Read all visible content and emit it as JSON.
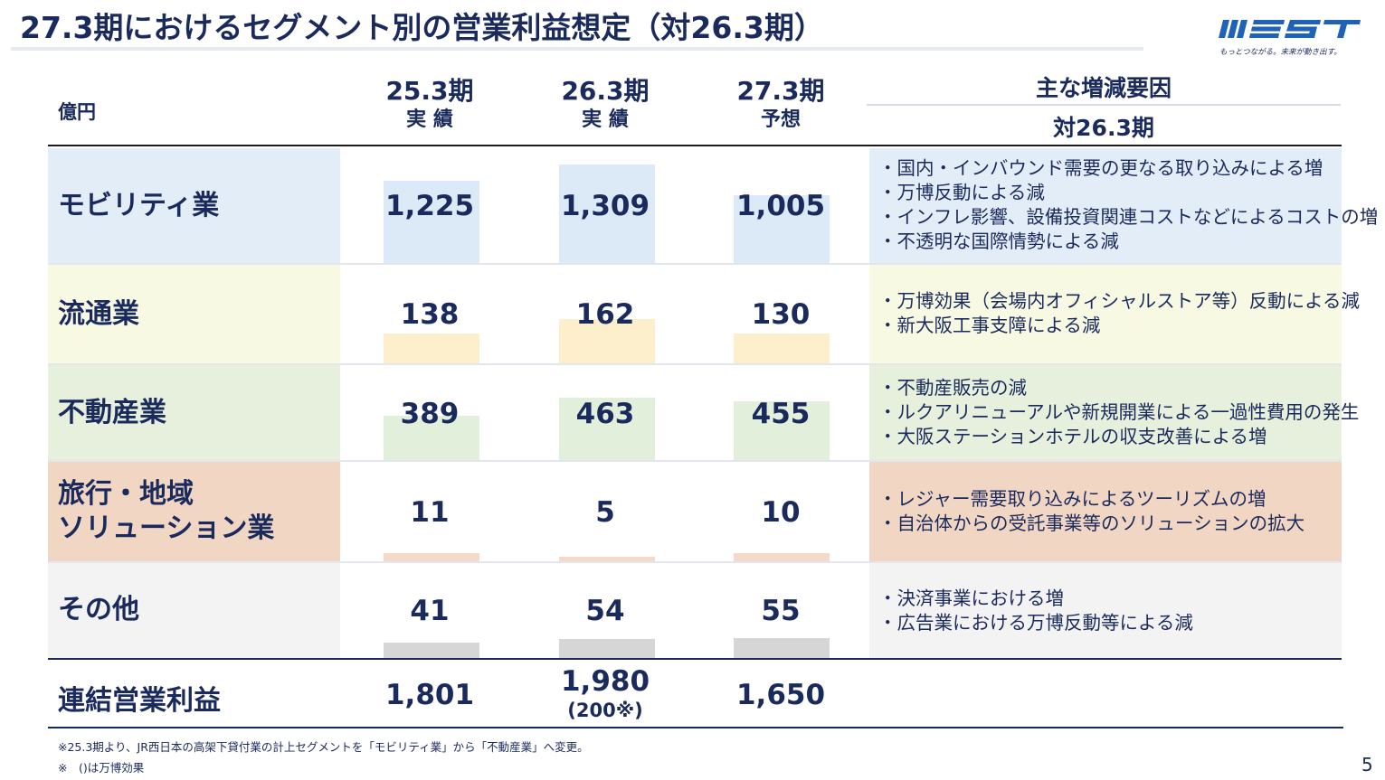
{
  "title": "27.3期におけるセグメント別の営業利益想定（対26.3期）",
  "logo": {
    "tagline": "もっとつながる。未来が動き出す。"
  },
  "header": {
    "unit": "億円",
    "columns": [
      {
        "period": "25.3期",
        "kind": "実 績"
      },
      {
        "period": "26.3期",
        "kind": "実 績"
      },
      {
        "period": "27.3期",
        "kind": "予想"
      }
    ],
    "reasons_title": "主な増減要因",
    "reasons_subtitle": "対26.3期"
  },
  "rows": [
    {
      "name": "モビリティ業",
      "values": [
        "1,225",
        "1,309",
        "1,005"
      ],
      "bar_values": [
        1225,
        1309,
        1005
      ],
      "bg": "#e3edf7",
      "reason_bg": "#e3edf7",
      "bar_color": "#dce9f6",
      "reasons": [
        "・国内・インバウンド需要の更なる取り込みによる増",
        "・万博反動による減",
        "・インフレ影響、設備投資関連コストなどによるコストの増",
        "・不透明な国際情勢による減"
      ]
    },
    {
      "name": "流通業",
      "values": [
        "138",
        "162",
        "130"
      ],
      "bar_values": [
        138,
        162,
        130
      ],
      "bg": "#f8f9e3",
      "reason_bg": "#f8f9e3",
      "bar_color": "#fdefcb",
      "reasons": [
        "・万博効果（会場内オフィシャルストア等）反動による減",
        "・新大阪工事支障による減"
      ]
    },
    {
      "name": "不動産業",
      "values": [
        "389",
        "463",
        "455"
      ],
      "bar_values": [
        389,
        463,
        455
      ],
      "bg": "#e6f0dc",
      "reason_bg": "#e6f0dc",
      "bar_color": "#e2efdb",
      "reasons": [
        "・不動産販売の減",
        "・ルクアリニューアルや新規開業による一過性費用の発生",
        "・大阪ステーションホテルの収支改善による増"
      ]
    },
    {
      "name_lines": [
        "旅行・地域",
        "ソリューション業"
      ],
      "values": [
        "11",
        "5",
        "10"
      ],
      "bar_values": [
        11,
        5,
        10
      ],
      "bg": "#f2d6c4",
      "reason_bg": "#f2d6c4",
      "bar_color": "#f5d9c9",
      "reasons": [
        "・レジャー需要取り込みによるツーリズムの増",
        "・自治体からの受託事業等のソリューションの拡大"
      ]
    },
    {
      "name": "その他",
      "values": [
        "41",
        "54",
        "55"
      ],
      "bar_values": [
        41,
        54,
        55
      ],
      "bg": "#f3f3f3",
      "reason_bg": "#f3f3f3",
      "bar_color": "#d6d6d6",
      "reasons": [
        "・決済事業における増",
        "・広告業における万博反動等による減"
      ]
    }
  ],
  "total": {
    "name": "連結営業利益",
    "values": [
      "1,801",
      "1,980",
      "1,650"
    ],
    "sub": "(200※)"
  },
  "notes": [
    "※25.3期より、JR西日本の高架下貸付業の計上セグメントを「モビリティ業」から「不動産業」へ変更。",
    "※　()は万博効果"
  ],
  "page_number": "5",
  "colors": {
    "navy": "#1a2a5c",
    "logo_blue": "#1e63b8"
  }
}
